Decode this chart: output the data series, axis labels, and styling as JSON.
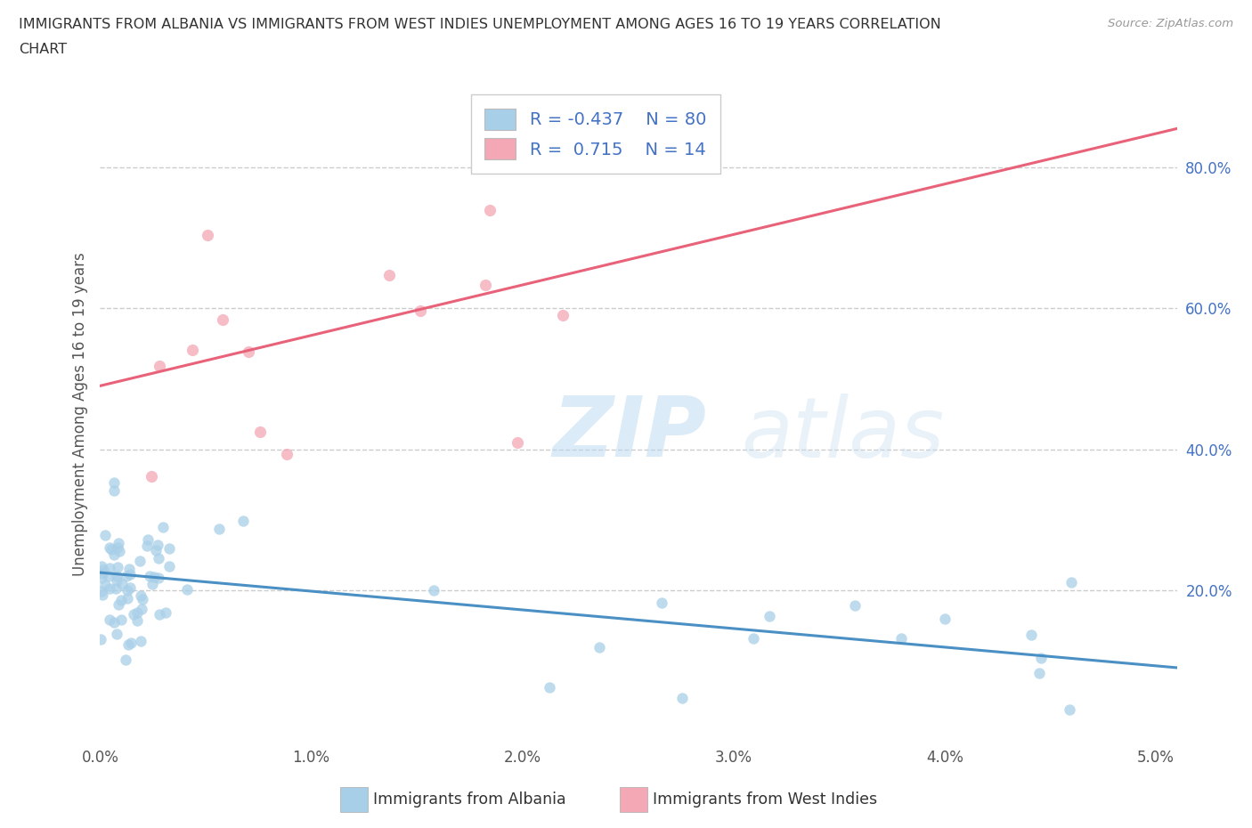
{
  "title_line1": "IMMIGRANTS FROM ALBANIA VS IMMIGRANTS FROM WEST INDIES UNEMPLOYMENT AMONG AGES 16 TO 19 YEARS CORRELATION",
  "title_line2": "CHART",
  "source": "Source: ZipAtlas.com",
  "ylabel": "Unemployment Among Ages 16 to 19 years",
  "r_albania": -0.437,
  "n_albania": 80,
  "r_west_indies": 0.715,
  "n_west_indies": 14,
  "color_albania": "#a8cfe8",
  "color_west_indies": "#f4a7b5",
  "line_color_albania": "#4a90c4",
  "line_color_west_indies": "#e8637a",
  "xlim": [
    0.0,
    0.051
  ],
  "ylim": [
    -0.02,
    0.92
  ],
  "xticks": [
    0.0,
    0.01,
    0.02,
    0.03,
    0.04,
    0.05
  ],
  "xtick_labels": [
    "0.0%",
    "1.0%",
    "2.0%",
    "3.0%",
    "4.0%",
    "5.0%"
  ],
  "yticks_right": [
    0.2,
    0.4,
    0.6,
    0.8
  ],
  "ytick_labels_right": [
    "20.0%",
    "40.0%",
    "60.0%",
    "80.0%"
  ],
  "grid_color": "#cccccc",
  "background_color": "#ffffff",
  "watermark_zip": "ZIP",
  "watermark_atlas": "atlas",
  "legend_label_albania": "Immigrants from Albania",
  "legend_label_west_indies": "Immigrants from West Indies",
  "alb_line_x0": 0.0,
  "alb_line_y0": 0.225,
  "alb_line_x1": 0.051,
  "alb_line_y1": 0.09,
  "wi_line_x0": 0.0,
  "wi_line_y0": 0.49,
  "wi_line_x1": 0.051,
  "wi_line_y1": 0.855
}
